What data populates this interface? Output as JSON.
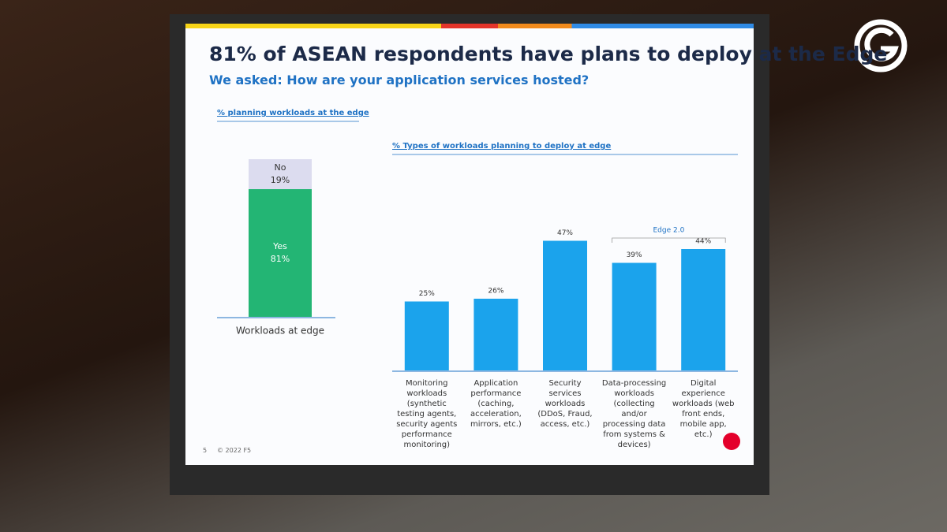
{
  "slide": {
    "title": "81% of ASEAN respondents have plans to deploy at the Edge",
    "subtitle": "We asked: How are your application services hosted?",
    "page_number": "5",
    "copyright": "© 2022 F5"
  },
  "chart_data": [
    {
      "type": "stacked_bar",
      "title": "% planning workloads at the edge",
      "categories": [
        "Workloads at edge"
      ],
      "series": [
        {
          "name": "Yes",
          "color": "#23b574",
          "values": [
            81
          ],
          "value_labels": [
            "81%"
          ]
        },
        {
          "name": "No",
          "color": "#dcdcef",
          "values": [
            19
          ],
          "value_labels": [
            "19%"
          ]
        }
      ]
    },
    {
      "type": "bar",
      "title": "% Types of workloads planning to deploy at edge",
      "categories": [
        "Monitoring workloads (synthetic testing agents, security agents performance monitoring)",
        "Application performance (caching, acceleration, mirrors, etc.)",
        "Security services workloads (DDoS, Fraud, access,  etc.)",
        "Data-processing workloads (collecting and/or processing data from systems & devices)",
        "Digital experience workloads (web front ends, mobile app, etc.)"
      ],
      "values": [
        25,
        26,
        47,
        39,
        44
      ],
      "value_labels": [
        "25%",
        "26%",
        "47%",
        "39%",
        "44%"
      ],
      "color": "#1ba3ec",
      "annotation": "Edge 2.0"
    }
  ]
}
